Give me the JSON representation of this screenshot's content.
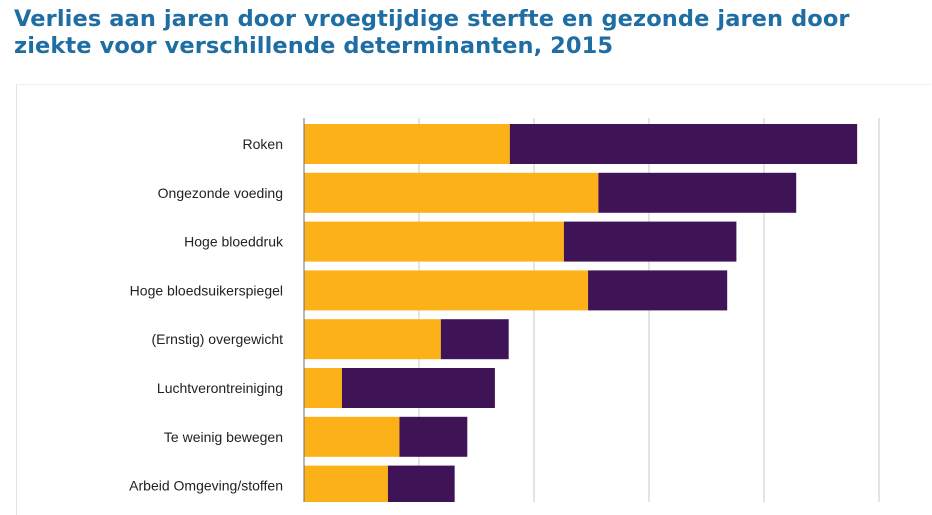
{
  "title_lines": [
    "Verlies aan jaren door vroegtijdige sterfte en gezonde jaren door",
    "ziekte voor verschillende determinanten, 2015"
  ],
  "chart_data": {
    "type": "bar",
    "orientation": "horizontal",
    "stacked": true,
    "title": "Verlies aan jaren door vroegtijdige sterfte en gezonde jaren door ziekte voor verschillende determinanten, 2015",
    "categories": [
      "Roken",
      "Ongezonde voeding",
      "Hoge bloeddruk",
      "Hoge bloedsuikerspiegel",
      "(Ernstig) overgewicht",
      "Luchtverontreiniging",
      "Te weinig bewegen",
      "Arbeid Omgeving/stoffen"
    ],
    "series": [
      {
        "color": "#fbb117",
        "values": [
          179,
          256,
          226,
          247,
          119,
          33,
          83,
          73
        ]
      },
      {
        "color": "#3f1456",
        "values": [
          302,
          172,
          150,
          121,
          59,
          133,
          59,
          58
        ]
      }
    ],
    "xlim": [
      0,
      500
    ],
    "x_gridlines": [
      100,
      200,
      300,
      400,
      500
    ],
    "grid": true,
    "legend": "none"
  }
}
